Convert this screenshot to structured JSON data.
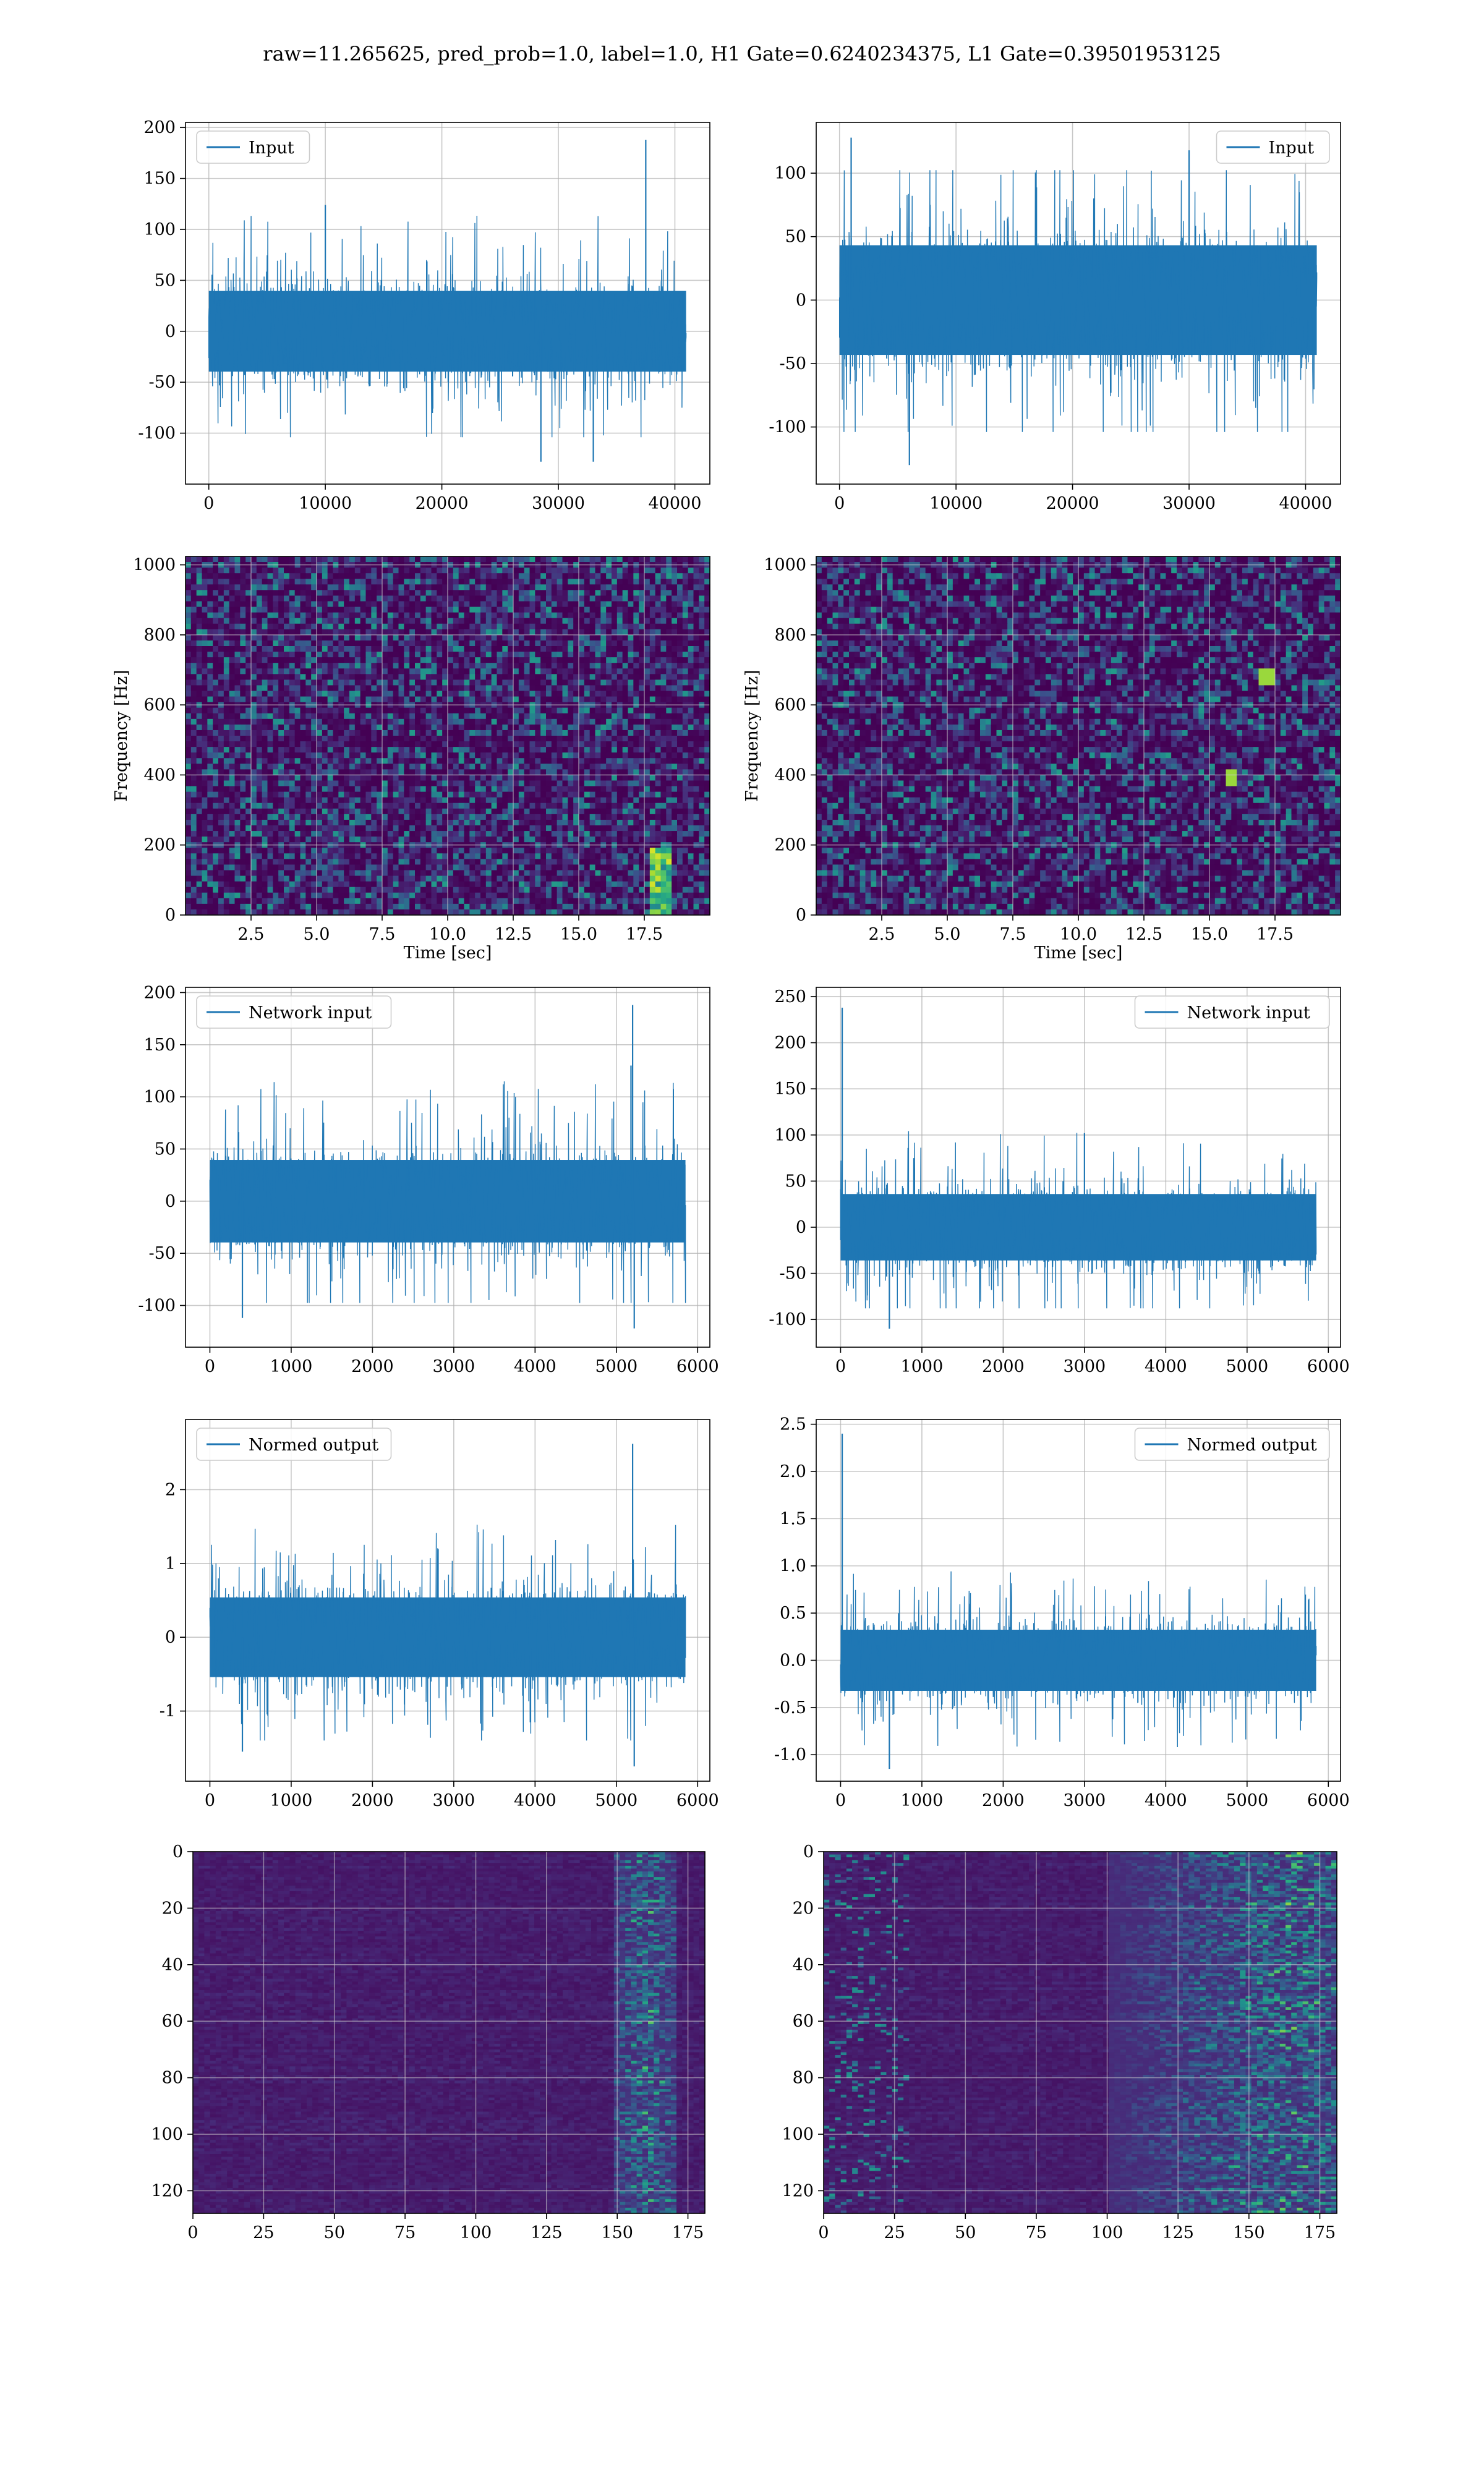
{
  "figure": {
    "title": "raw=11.265625, pred_prob=1.0, label=1.0, H1 Gate=0.6240234375, L1 Gate=0.39501953125",
    "colors": {
      "line": "#1f77b4",
      "grid": "#b0b0b0",
      "spine": "#000000",
      "viridis_dark": "#440154",
      "viridis_mid": "#21918c",
      "viridis_bright": "#fde725"
    }
  },
  "chart_data": [
    {
      "id": "input-h1",
      "type": "line",
      "legend": "Input",
      "legend_loc": "upper left",
      "grid": true,
      "xlim": [
        -2000,
        43000
      ],
      "ylim": [
        -150,
        205
      ],
      "xticks": [
        0,
        10000,
        20000,
        30000,
        40000
      ],
      "yticks": [
        -100,
        -50,
        0,
        50,
        100,
        150,
        200
      ],
      "x_range": [
        0,
        40960
      ],
      "series": [
        {
          "envelope": {
            "typical": 55,
            "peak_low": -130,
            "peak_high": 188
          },
          "spikes": [
            {
              "x": 37500,
              "y": 188
            },
            {
              "x": 10000,
              "y": 124
            },
            {
              "x": 28500,
              "y": -128
            },
            {
              "x": 33000,
              "y": -128
            }
          ]
        }
      ]
    },
    {
      "id": "input-l1",
      "type": "line",
      "legend": "Input",
      "legend_loc": "upper right",
      "grid": true,
      "xlim": [
        -2000,
        43000
      ],
      "ylim": [
        -145,
        140
      ],
      "xticks": [
        0,
        10000,
        20000,
        30000,
        40000
      ],
      "yticks": [
        -100,
        -50,
        0,
        50,
        100
      ],
      "x_range": [
        0,
        40960
      ],
      "series": [
        {
          "envelope": {
            "typical": 60,
            "peak_low": -130,
            "peak_high": 128
          },
          "spikes": [
            {
              "x": 1000,
              "y": 128
            },
            {
              "x": 6000,
              "y": -130
            },
            {
              "x": 30000,
              "y": 118
            }
          ]
        }
      ]
    },
    {
      "id": "spectrogram-h1",
      "type": "heatmap",
      "colormap": "viridis",
      "grid": true,
      "xlabel": "Time [sec]",
      "ylabel": "Frequency [Hz]",
      "xlim": [
        0,
        20
      ],
      "ylim": [
        0,
        1024
      ],
      "xticks": [
        2.5,
        5.0,
        7.5,
        10.0,
        12.5,
        15.0,
        17.5
      ],
      "yticks": [
        0,
        200,
        400,
        600,
        800,
        1000
      ],
      "features": {
        "dark_band_hz": 500,
        "chirp_time_sec": 18.1,
        "chirp_top_hz": 200
      }
    },
    {
      "id": "spectrogram-l1",
      "type": "heatmap",
      "colormap": "viridis",
      "grid": true,
      "xlabel": "Time [sec]",
      "ylabel": "Frequency [Hz]",
      "xlim": [
        0,
        20
      ],
      "ylim": [
        0,
        1024
      ],
      "xticks": [
        2.5,
        5.0,
        7.5,
        10.0,
        12.5,
        15.0,
        17.5
      ],
      "yticks": [
        0,
        200,
        400,
        600,
        800,
        1000
      ],
      "features": {
        "dark_band_hz": 500,
        "hot_spots": [
          {
            "t": 15.8,
            "f": 390
          },
          {
            "t": 17.2,
            "f": 680
          }
        ]
      }
    },
    {
      "id": "network-input-h1",
      "type": "line",
      "legend": "Network input",
      "legend_loc": "upper left",
      "grid": true,
      "xlim": [
        -300,
        6150
      ],
      "ylim": [
        -140,
        205
      ],
      "xticks": [
        0,
        1000,
        2000,
        3000,
        4000,
        5000,
        6000
      ],
      "yticks": [
        -100,
        -50,
        0,
        50,
        100,
        150,
        200
      ],
      "x_range": [
        0,
        5850
      ],
      "series": [
        {
          "envelope": {
            "typical": 55,
            "peak_low": -122,
            "peak_high": 188
          },
          "spikes": [
            {
              "x": 5200,
              "y": 188
            },
            {
              "x": 5180,
              "y": 130
            },
            {
              "x": 5220,
              "y": -122
            },
            {
              "x": 400,
              "y": -112
            }
          ]
        }
      ]
    },
    {
      "id": "network-input-l1",
      "type": "line",
      "legend": "Network input",
      "legend_loc": "upper right",
      "grid": true,
      "xlim": [
        -300,
        6150
      ],
      "ylim": [
        -130,
        260
      ],
      "xticks": [
        0,
        1000,
        2000,
        3000,
        4000,
        5000,
        6000
      ],
      "yticks": [
        -100,
        -50,
        0,
        50,
        100,
        150,
        200,
        250
      ],
      "x_range": [
        0,
        5850
      ],
      "series": [
        {
          "envelope": {
            "typical": 50,
            "peak_low": -110,
            "peak_high": 238
          },
          "spikes": [
            {
              "x": 20,
              "y": 238
            },
            {
              "x": 600,
              "y": -110
            },
            {
              "x": 3000,
              "y": 102
            }
          ]
        }
      ]
    },
    {
      "id": "normed-output-h1",
      "type": "line",
      "legend": "Normed output",
      "legend_loc": "upper left",
      "grid": true,
      "xlim": [
        -300,
        6150
      ],
      "ylim": [
        -1.95,
        2.95
      ],
      "xticks": [
        0,
        1000,
        2000,
        3000,
        4000,
        5000,
        6000
      ],
      "yticks": [
        -1,
        0,
        1,
        2
      ],
      "x_range": [
        0,
        5850
      ],
      "series": [
        {
          "envelope": {
            "typical": 0.75,
            "peak_low": -1.75,
            "peak_high": 2.62
          },
          "spikes": [
            {
              "x": 5200,
              "y": 2.62
            },
            {
              "x": 5220,
              "y": -1.75
            },
            {
              "x": 400,
              "y": -1.55
            }
          ]
        }
      ]
    },
    {
      "id": "normed-output-l1",
      "type": "line",
      "legend": "Normed output",
      "legend_loc": "upper right",
      "grid": true,
      "xlim": [
        -300,
        6150
      ],
      "ylim": [
        -1.28,
        2.55
      ],
      "xticks": [
        0,
        1000,
        2000,
        3000,
        4000,
        5000,
        6000
      ],
      "yticks": [
        -1.0,
        -0.5,
        0.0,
        0.5,
        1.0,
        1.5,
        2.0,
        2.5
      ],
      "x_range": [
        0,
        5850
      ],
      "series": [
        {
          "envelope": {
            "typical": 0.45,
            "peak_low": -1.15,
            "peak_high": 2.4
          },
          "spikes": [
            {
              "x": 20,
              "y": 2.4
            },
            {
              "x": 600,
              "y": -1.15
            }
          ]
        }
      ]
    },
    {
      "id": "feature-map-h1",
      "type": "heatmap",
      "colormap": "viridis",
      "grid": true,
      "xlim": [
        0,
        181
      ],
      "ylim": [
        128,
        0
      ],
      "xticks": [
        0,
        25,
        50,
        75,
        100,
        125,
        150,
        175
      ],
      "yticks": [
        0,
        20,
        40,
        60,
        80,
        100,
        120
      ],
      "features": {
        "bright_band_x": [
          148,
          170
        ],
        "bright_core_x": 161
      }
    },
    {
      "id": "feature-map-l1",
      "type": "heatmap",
      "colormap": "viridis",
      "grid": true,
      "xlim": [
        0,
        181
      ],
      "ylim": [
        128,
        0
      ],
      "xticks": [
        0,
        25,
        50,
        75,
        100,
        125,
        150,
        175
      ],
      "yticks": [
        0,
        20,
        40,
        60,
        80,
        100,
        120
      ],
      "features": {
        "bright_band_x": [
          100,
          181
        ],
        "bright_core_x": 165
      }
    }
  ]
}
